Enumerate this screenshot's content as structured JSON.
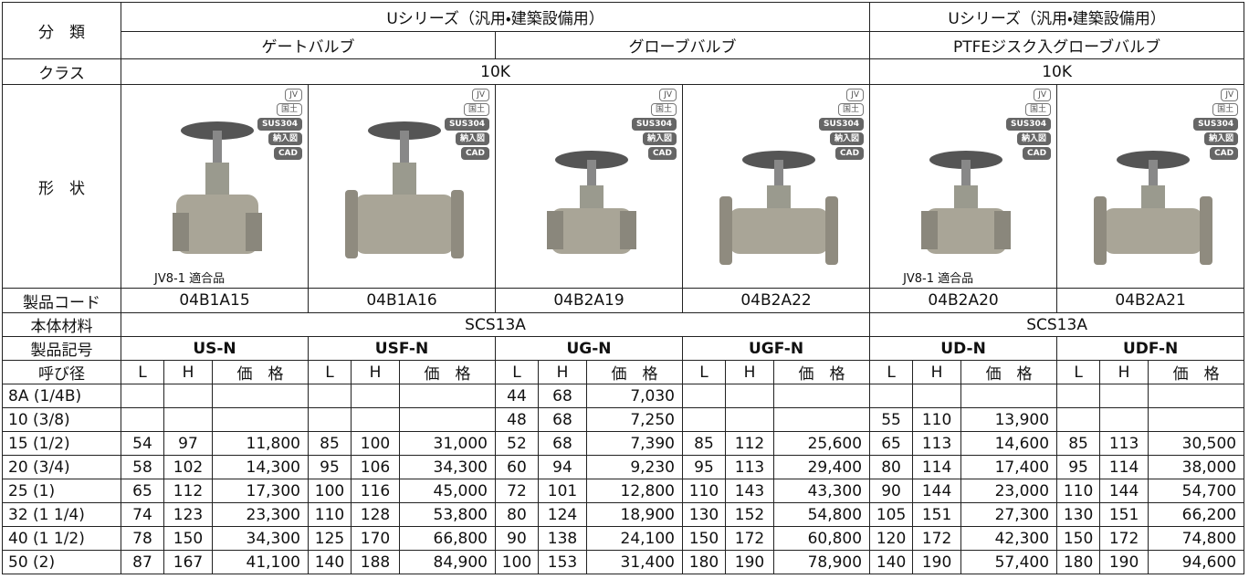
{
  "header": {
    "category_label": "分　類",
    "series": [
      "Uシリーズ（汎用・建築設備用）",
      "Uシリーズ（汎用・建築設備用）"
    ],
    "types": [
      "ゲートバルブ",
      "グローブバルブ",
      "PTFEジスク入グローブバルブ"
    ],
    "class_label": "クラス",
    "classes": [
      "10K",
      "10K"
    ],
    "shape_label": "形　状",
    "code_label": "製品コード",
    "material_label": "本体材料",
    "materials": [
      "SCS13A",
      "SCS13A"
    ],
    "symbol_label": "製品記号",
    "size_label": "呼び径",
    "sub_headers": [
      "L",
      "H",
      "価　格"
    ]
  },
  "badges": [
    "JV",
    "国土",
    "SUS304",
    "納入図",
    "CAD"
  ],
  "products": [
    {
      "code": "04B1A15",
      "symbol": "US-N",
      "note": "JV8-1 適合品"
    },
    {
      "code": "04B1A16",
      "symbol": "USF-N"
    },
    {
      "code": "04B2A19",
      "symbol": "UG-N"
    },
    {
      "code": "04B2A22",
      "symbol": "UGF-N"
    },
    {
      "code": "04B2A20",
      "symbol": "UD-N",
      "note": "JV8-1 適合品"
    },
    {
      "code": "04B2A21",
      "symbol": "UDF-N"
    }
  ],
  "table": {
    "rows": [
      [
        "8A (1/4B)",
        null,
        null,
        null,
        null,
        null,
        null,
        "44",
        "68",
        "7,030",
        null,
        null,
        null,
        null,
        null,
        null,
        null,
        null,
        null
      ],
      [
        "10 (3/8)",
        null,
        null,
        null,
        null,
        null,
        null,
        "48",
        "68",
        "7,250",
        null,
        null,
        null,
        "55",
        "110",
        "13,900",
        null,
        null,
        null
      ],
      [
        "15 (1/2)",
        "54",
        "97",
        "11,800",
        "85",
        "100",
        "31,000",
        "52",
        "68",
        "7,390",
        "85",
        "112",
        "25,600",
        "65",
        "113",
        "14,600",
        "85",
        "113",
        "30,500"
      ],
      [
        "20 (3/4)",
        "58",
        "102",
        "14,300",
        "95",
        "106",
        "34,300",
        "60",
        "94",
        "9,230",
        "95",
        "113",
        "29,400",
        "80",
        "114",
        "17,400",
        "95",
        "114",
        "38,000"
      ],
      [
        "25 (1)",
        "65",
        "112",
        "17,300",
        "100",
        "116",
        "45,000",
        "72",
        "101",
        "12,800",
        "110",
        "143",
        "43,300",
        "90",
        "144",
        "23,000",
        "110",
        "144",
        "54,700"
      ],
      [
        "32 (1 1/4)",
        "74",
        "123",
        "23,300",
        "110",
        "128",
        "53,800",
        "80",
        "124",
        "18,900",
        "130",
        "152",
        "54,800",
        "105",
        "151",
        "27,300",
        "130",
        "151",
        "66,200"
      ],
      [
        "40 (1 1/2)",
        "78",
        "150",
        "34,300",
        "125",
        "170",
        "66,800",
        "90",
        "138",
        "24,100",
        "150",
        "172",
        "60,800",
        "120",
        "172",
        "42,300",
        "150",
        "172",
        "74,800"
      ],
      [
        "50 (2)",
        "87",
        "167",
        "41,100",
        "140",
        "188",
        "84,900",
        "100",
        "153",
        "31,400",
        "180",
        "190",
        "78,900",
        "140",
        "190",
        "57,400",
        "180",
        "190",
        "94,600"
      ]
    ]
  }
}
